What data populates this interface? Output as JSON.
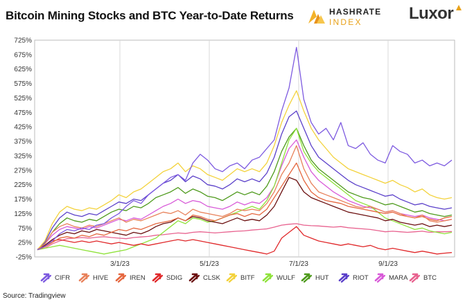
{
  "title": "Bitcoin Mining Stocks and BTC Year-to-Date Returns",
  "source": "Source: Tradingview",
  "logos": {
    "hashrate_line1": "HASHRATE",
    "hashrate_line2": "INDEX",
    "luxor": "Luxor"
  },
  "chart_data": {
    "type": "line",
    "title": "Bitcoin Mining Stocks and BTC Year-to-Date Returns",
    "xlabel": "",
    "ylabel": "",
    "x_ticks": [
      "3/1/23",
      "5/1/23",
      "7/1/23",
      "9/1/23"
    ],
    "y_ticks": [
      "725%",
      "675%",
      "625%",
      "575%",
      "525%",
      "475%",
      "425%",
      "375%",
      "325%",
      "275%",
      "225%",
      "175%",
      "125%",
      "75%",
      "25%",
      "-25%"
    ],
    "ylim": [
      -25,
      725
    ],
    "grid": "vertical",
    "legend_position": "bottom",
    "series": [
      {
        "name": "CIFR",
        "color": "#7d5ae0",
        "values": [
          0,
          12,
          30,
          55,
          70,
          65,
          75,
          70,
          85,
          90,
          110,
          125,
          150,
          170,
          160,
          190,
          210,
          230,
          250,
          260,
          240,
          300,
          330,
          310,
          280,
          270,
          290,
          300,
          280,
          310,
          320,
          350,
          380,
          480,
          560,
          700,
          520,
          440,
          400,
          420,
          380,
          440,
          360,
          350,
          370,
          330,
          310,
          300,
          360,
          340,
          330,
          300,
          310,
          290,
          300,
          290,
          310
        ]
      },
      {
        "name": "HIVE",
        "color": "#e8815a",
        "values": [
          0,
          20,
          60,
          80,
          90,
          80,
          75,
          85,
          80,
          90,
          100,
          110,
          95,
          105,
          100,
          110,
          120,
          130,
          125,
          135,
          120,
          140,
          130,
          125,
          120,
          115,
          125,
          140,
          135,
          140,
          135,
          160,
          200,
          260,
          300,
          360,
          280,
          230,
          200,
          190,
          180,
          170,
          160,
          150,
          145,
          150,
          140,
          130,
          135,
          125,
          115,
          110,
          120,
          100,
          95,
          100,
          105
        ]
      },
      {
        "name": "IREN",
        "color": "#e5673f",
        "values": [
          0,
          10,
          25,
          40,
          45,
          40,
          50,
          45,
          55,
          50,
          60,
          70,
          65,
          75,
          70,
          80,
          90,
          95,
          100,
          110,
          100,
          120,
          115,
          105,
          100,
          110,
          120,
          125,
          115,
          125,
          120,
          140,
          180,
          220,
          260,
          300,
          240,
          200,
          180,
          170,
          165,
          160,
          150,
          145,
          140,
          135,
          130,
          125,
          130,
          120,
          115,
          110,
          115,
          105,
          100,
          110,
          115
        ]
      },
      {
        "name": "SDIG",
        "color": "#e0282a",
        "values": [
          0,
          10,
          30,
          35,
          30,
          25,
          30,
          25,
          30,
          25,
          20,
          25,
          20,
          15,
          20,
          15,
          20,
          25,
          30,
          35,
          30,
          35,
          30,
          25,
          20,
          15,
          10,
          5,
          0,
          -5,
          -10,
          -15,
          -5,
          40,
          60,
          80,
          50,
          40,
          30,
          25,
          20,
          15,
          20,
          15,
          10,
          15,
          5,
          0,
          5,
          0,
          -5,
          -10,
          -5,
          -10,
          -15,
          -12,
          -10
        ]
      },
      {
        "name": "CLSK",
        "color": "#6b0f0f",
        "values": [
          0,
          15,
          35,
          50,
          60,
          55,
          65,
          60,
          70,
          65,
          60,
          55,
          50,
          60,
          55,
          65,
          80,
          90,
          95,
          110,
          100,
          115,
          110,
          100,
          95,
          90,
          100,
          110,
          100,
          105,
          100,
          120,
          150,
          200,
          250,
          240,
          200,
          180,
          170,
          160,
          150,
          140,
          130,
          125,
          120,
          115,
          110,
          100,
          105,
          95,
          90,
          85,
          90,
          80,
          85,
          80,
          85
        ]
      },
      {
        "name": "BITF",
        "color": "#f3d23b",
        "values": [
          0,
          30,
          90,
          130,
          150,
          140,
          135,
          145,
          140,
          155,
          170,
          190,
          180,
          200,
          210,
          230,
          250,
          270,
          280,
          300,
          270,
          290,
          280,
          260,
          250,
          240,
          260,
          280,
          270,
          280,
          270,
          300,
          360,
          440,
          500,
          550,
          480,
          420,
          380,
          350,
          320,
          300,
          280,
          270,
          260,
          250,
          240,
          230,
          240,
          225,
          215,
          200,
          210,
          190,
          180,
          175,
          180
        ]
      },
      {
        "name": "WULF",
        "color": "#8fe23b",
        "values": [
          0,
          5,
          10,
          15,
          10,
          5,
          0,
          -5,
          -10,
          -15,
          -10,
          -5,
          0,
          10,
          20,
          30,
          40,
          60,
          80,
          100,
          90,
          110,
          105,
          95,
          100,
          110,
          120,
          130,
          140,
          150,
          140,
          170,
          220,
          300,
          380,
          420,
          340,
          300,
          270,
          250,
          230,
          210,
          190,
          170,
          160,
          150,
          130,
          110,
          100,
          90,
          80,
          70,
          75,
          65,
          60,
          55,
          60
        ]
      },
      {
        "name": "HUT",
        "color": "#4e9a1c",
        "values": [
          0,
          20,
          60,
          90,
          110,
          100,
          95,
          105,
          100,
          115,
          130,
          140,
          135,
          150,
          145,
          160,
          180,
          190,
          200,
          215,
          195,
          210,
          200,
          185,
          180,
          170,
          185,
          200,
          190,
          200,
          190,
          220,
          270,
          340,
          390,
          420,
          360,
          310,
          280,
          260,
          240,
          220,
          200,
          190,
          180,
          175,
          165,
          155,
          160,
          150,
          140,
          130,
          135,
          125,
          120,
          115,
          120
        ]
      },
      {
        "name": "RIOT",
        "color": "#5a3fc9",
        "values": [
          0,
          25,
          75,
          110,
          130,
          120,
          115,
          125,
          120,
          135,
          150,
          165,
          160,
          175,
          170,
          190,
          210,
          230,
          240,
          260,
          235,
          255,
          245,
          225,
          220,
          210,
          225,
          245,
          235,
          245,
          235,
          265,
          320,
          400,
          460,
          480,
          420,
          360,
          320,
          300,
          280,
          260,
          240,
          225,
          215,
          205,
          195,
          185,
          190,
          175,
          165,
          155,
          160,
          150,
          145,
          140,
          145
        ]
      },
      {
        "name": "MARA",
        "color": "#d85ad8",
        "values": [
          0,
          20,
          50,
          70,
          80,
          75,
          70,
          80,
          75,
          85,
          95,
          105,
          100,
          110,
          105,
          120,
          135,
          150,
          160,
          175,
          160,
          170,
          165,
          150,
          145,
          140,
          150,
          165,
          155,
          165,
          160,
          180,
          220,
          290,
          350,
          380,
          320,
          270,
          240,
          220,
          200,
          185,
          170,
          160,
          150,
          145,
          140,
          130,
          135,
          125,
          120,
          115,
          120,
          110,
          105,
          100,
          105
        ]
      },
      {
        "name": "BTC",
        "color": "#e8628f",
        "values": [
          0,
          5,
          20,
          30,
          38,
          40,
          42,
          40,
          43,
          45,
          42,
          40,
          38,
          42,
          44,
          46,
          50,
          52,
          55,
          58,
          56,
          60,
          62,
          60,
          58,
          60,
          62,
          64,
          65,
          68,
          70,
          72,
          78,
          85,
          88,
          90,
          85,
          83,
          82,
          80,
          78,
          80,
          76,
          74,
          72,
          70,
          66,
          62,
          64,
          62,
          60,
          62,
          64,
          60,
          62,
          62,
          63
        ]
      }
    ]
  }
}
